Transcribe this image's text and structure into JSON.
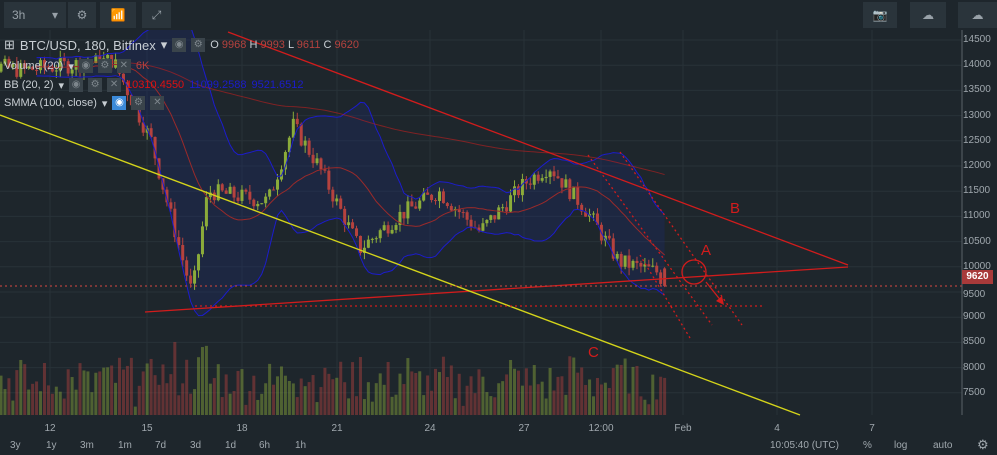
{
  "toolbar": {
    "interval": "3h",
    "icons": [
      "gear-icon",
      "indicators-icon",
      "fullscreen-icon",
      "camera-icon",
      "cloud-download-icon",
      "cloud-upload-icon"
    ]
  },
  "legend": {
    "symbol": "BTC/USD, 180, Bitfinex",
    "o_label": "O",
    "o": "9968",
    "h_label": "H",
    "h": "9993",
    "l_label": "L",
    "l": "9611",
    "c_label": "C",
    "c": "9620",
    "volume": "Volume (20)",
    "volume_value": "6K",
    "bb": "BB (20, 2)",
    "bb_mid": "10310.4550",
    "bb_up": "11099.2588",
    "bb_low": "9521.6512",
    "smma": "SMMA (100, close)"
  },
  "price_axis": [
    "14500",
    "14000",
    "13500",
    "13000",
    "12500",
    "12000",
    "11500",
    "11000",
    "10500",
    "10000",
    "9500",
    "9000",
    "8500",
    "8000",
    "7500"
  ],
  "last_price": "9620",
  "time_axis": [
    "12",
    "15",
    "18",
    "21",
    "24",
    "27",
    "12:00",
    "Feb",
    "4",
    "7"
  ],
  "ranges": [
    "3y",
    "1y",
    "3m",
    "1m",
    "7d",
    "3d",
    "1d",
    "6h",
    "1h"
  ],
  "footer": {
    "time": "10:05:40 (UTC)",
    "percent": "%",
    "log": "log",
    "auto": "auto"
  },
  "annotations": {
    "a": "A",
    "b": "B",
    "c": "C"
  },
  "colors": {
    "up": "#8bab3a",
    "down": "#b5423e",
    "bb": "#1c1ccc",
    "smma": "#c02020",
    "trend": "#d21c1c",
    "support": "#d4d41a",
    "bg": "#1e262c"
  },
  "chart_data": {
    "type": "candlestick",
    "symbol": "BTC/USD",
    "interval": "3h",
    "ylim": [
      7200,
      14700
    ],
    "price_path_jan_day": [
      [
        9.2,
        14100
      ],
      [
        11.1,
        13900
      ],
      [
        14,
        14100
      ],
      [
        15.2,
        12500
      ],
      [
        15.7,
        11300
      ],
      [
        16.5,
        9450
      ],
      [
        17,
        11500
      ],
      [
        18.9,
        11300
      ],
      [
        19.7,
        12800
      ],
      [
        20.5,
        12000
      ],
      [
        21.8,
        10350
      ],
      [
        23,
        11000
      ],
      [
        24.3,
        11500
      ],
      [
        25.6,
        10700
      ],
      [
        27.1,
        11700
      ],
      [
        27.8,
        12000
      ],
      [
        29,
        11100
      ],
      [
        30,
        10100
      ],
      [
        31.2,
        9900
      ],
      [
        31.5,
        9620
      ]
    ],
    "last_ohlc": {
      "o": 9968,
      "h": 9993,
      "l": 9611,
      "c": 9620
    }
  }
}
